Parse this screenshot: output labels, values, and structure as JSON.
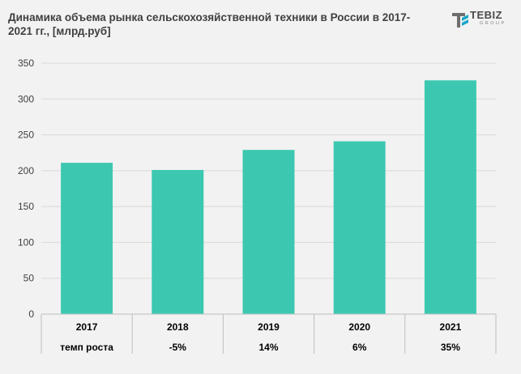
{
  "title": "Динамика объема рынка сельскохозяйственной техники в России в 2017-2021 гг., [млрд.руб]",
  "logo": {
    "name": "TEBIZ",
    "sub": "GROUP",
    "icon": "tebiz-logo-icon"
  },
  "colors": {
    "bar": "#3cc8b0",
    "grid": "#d9d9d9",
    "background": "#f2f2f2"
  },
  "chart_data": {
    "type": "bar",
    "title": "Динамика объема рынка сельскохозяйственной техники в России в 2017-2021 гг., [млрд.руб]",
    "categories": [
      "2017",
      "2018",
      "2019",
      "2020",
      "2021"
    ],
    "values": [
      211,
      201,
      229,
      241,
      326
    ],
    "ylim": [
      0,
      350
    ],
    "yticks": [
      0,
      50,
      100,
      150,
      200,
      250,
      300,
      350
    ],
    "grid": true,
    "legend": "none",
    "growth_row": {
      "label": "темп роста",
      "values": [
        "-5%",
        "14%",
        "6%",
        "35%"
      ]
    }
  }
}
